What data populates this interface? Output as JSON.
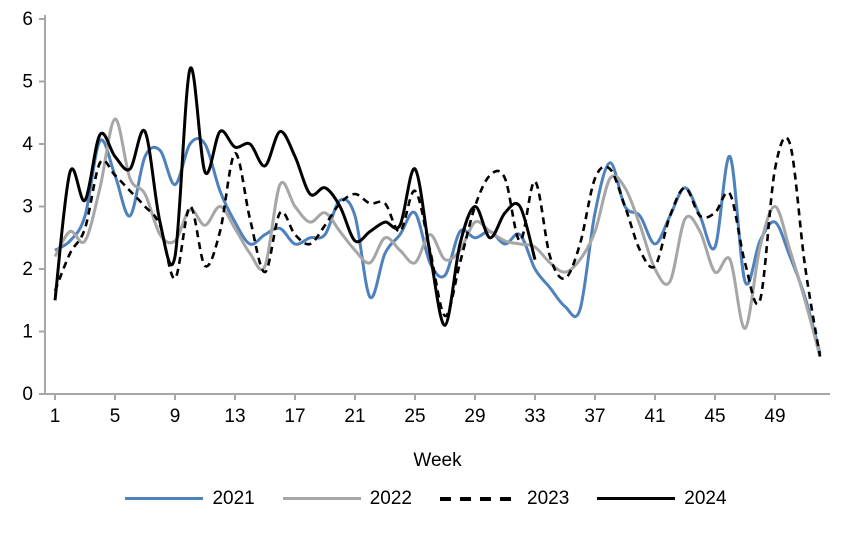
{
  "chart_data": {
    "type": "line",
    "title": "",
    "xlabel": "Week",
    "ylabel": "",
    "xlim": [
      1,
      53
    ],
    "ylim": [
      0,
      6
    ],
    "grid": false,
    "legend_position": "bottom",
    "x_ticks": [
      1,
      5,
      9,
      13,
      17,
      21,
      25,
      29,
      33,
      37,
      41,
      45,
      49
    ],
    "y_ticks": [
      0,
      1,
      2,
      3,
      4,
      5,
      6
    ],
    "axis_color": "#A6A6A6",
    "x": [
      1,
      2,
      3,
      4,
      5,
      6,
      7,
      8,
      9,
      10,
      11,
      12,
      13,
      14,
      15,
      16,
      17,
      18,
      19,
      20,
      21,
      22,
      23,
      24,
      25,
      26,
      27,
      28,
      29,
      30,
      31,
      32,
      33,
      34,
      35,
      36,
      37,
      38,
      39,
      40,
      41,
      42,
      43,
      44,
      45,
      46,
      47,
      48,
      49,
      50,
      51,
      52
    ],
    "series": [
      {
        "name": "2021",
        "color": "#4F81BD",
        "style": "solid",
        "values": [
          2.3,
          2.45,
          2.85,
          4.05,
          3.5,
          2.85,
          3.8,
          3.9,
          3.35,
          4.0,
          4.0,
          3.25,
          2.75,
          2.4,
          2.55,
          2.65,
          2.4,
          2.5,
          2.55,
          3.1,
          2.85,
          1.55,
          2.25,
          2.55,
          2.9,
          2.1,
          1.9,
          2.6,
          2.5,
          2.6,
          2.4,
          2.55,
          2.0,
          1.7,
          1.4,
          1.35,
          2.9,
          3.7,
          3.0,
          2.85,
          2.4,
          2.85,
          3.3,
          2.85,
          2.35,
          3.8,
          1.8,
          2.45,
          2.75,
          2.2,
          1.55,
          0.65
        ]
      },
      {
        "name": "2022",
        "color": "#A6A6A6",
        "style": "solid",
        "values": [
          2.2,
          2.6,
          2.45,
          3.3,
          4.4,
          3.45,
          3.2,
          2.55,
          2.45,
          2.95,
          2.7,
          3.0,
          2.65,
          2.25,
          2.05,
          3.35,
          3.0,
          2.75,
          2.9,
          2.6,
          2.3,
          2.1,
          2.5,
          2.3,
          2.1,
          2.55,
          2.15,
          2.3,
          2.75,
          2.6,
          2.45,
          2.4,
          2.35,
          2.1,
          1.95,
          2.15,
          2.6,
          3.45,
          3.3,
          2.7,
          2.0,
          1.8,
          2.8,
          2.6,
          1.95,
          2.15,
          1.05,
          2.35,
          3.0,
          2.3,
          1.5,
          0.6
        ]
      },
      {
        "name": "2023",
        "color": "#000000",
        "style": "dashed",
        "values": [
          1.65,
          2.25,
          2.65,
          3.7,
          3.5,
          3.25,
          3.0,
          2.7,
          1.85,
          3.0,
          2.05,
          2.6,
          3.85,
          2.8,
          1.95,
          2.9,
          2.55,
          2.4,
          2.7,
          3.05,
          3.2,
          3.05,
          3.05,
          2.6,
          3.25,
          2.3,
          1.25,
          2.1,
          3.0,
          3.5,
          3.45,
          2.45,
          3.4,
          2.2,
          1.85,
          2.4,
          3.45,
          3.6,
          3.0,
          2.3,
          2.05,
          2.85,
          3.3,
          2.85,
          2.9,
          3.2,
          2.1,
          1.5,
          3.6,
          4.0,
          2.05,
          0.6
        ]
      },
      {
        "name": "2024",
        "color": "#000000",
        "style": "solid",
        "values": [
          1.5,
          3.55,
          3.1,
          4.15,
          3.8,
          3.6,
          4.2,
          2.75,
          2.2,
          5.2,
          3.55,
          4.2,
          3.95,
          4.0,
          3.65,
          4.2,
          3.8,
          3.2,
          3.3,
          3.0,
          2.45,
          2.6,
          2.75,
          2.7,
          3.6,
          2.25,
          1.1,
          2.4,
          3.0,
          2.5,
          2.9,
          3.0,
          2.15
        ]
      }
    ]
  }
}
